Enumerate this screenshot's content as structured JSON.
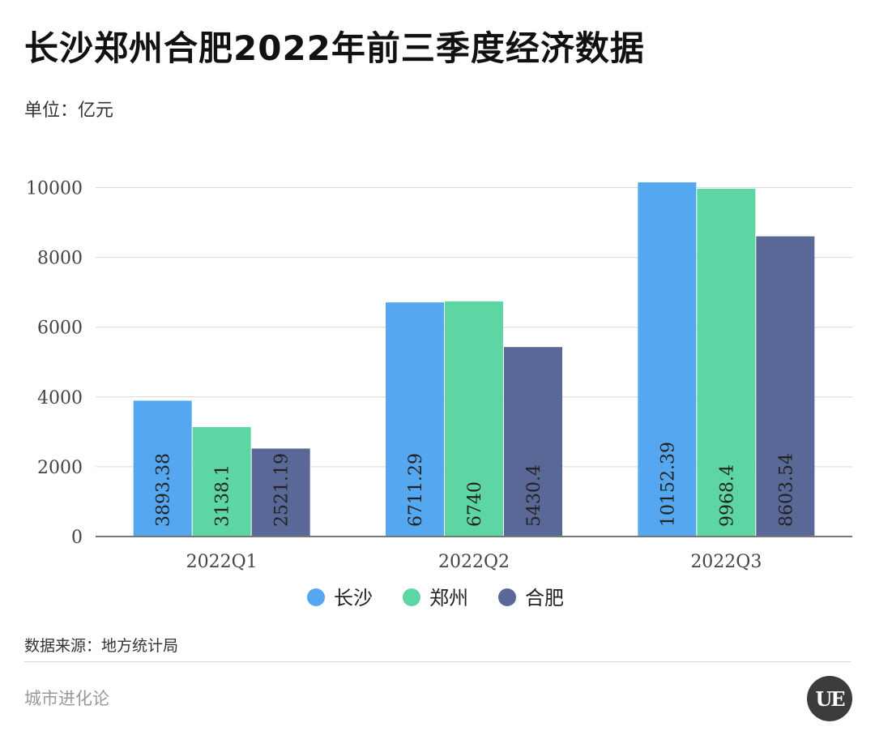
{
  "title": "长沙郑州合肥2022年前三季度经济数据",
  "unit_label": "单位：亿元",
  "source_label": "数据来源：地方统计局",
  "brand": "城市进化论",
  "logo_text": "UE",
  "chart_data": {
    "type": "bar",
    "title": "长沙郑州合肥2022年前三季度经济数据",
    "xlabel": "",
    "ylabel": "",
    "ylim": [
      0,
      10500
    ],
    "yticks": [
      0,
      2000,
      4000,
      6000,
      8000,
      10000
    ],
    "categories": [
      "2022Q1",
      "2022Q2",
      "2022Q3"
    ],
    "series": [
      {
        "name": "长沙",
        "color": "#55a8f0",
        "values": [
          3893.38,
          6711.29,
          10152.39
        ]
      },
      {
        "name": "郑州",
        "color": "#5dd6a4",
        "values": [
          3138.1,
          6740,
          9968.4
        ]
      },
      {
        "name": "合肥",
        "color": "#596896",
        "values": [
          2521.19,
          5430.4,
          8603.54
        ]
      }
    ],
    "data_label_texts": [
      [
        "3893.38",
        "6711.29",
        "10152.39"
      ],
      [
        "3138.1",
        "6740",
        "9968.4"
      ],
      [
        "2521.19",
        "5430.4",
        "8603.54"
      ]
    ],
    "grid": true,
    "legend_position": "bottom"
  }
}
